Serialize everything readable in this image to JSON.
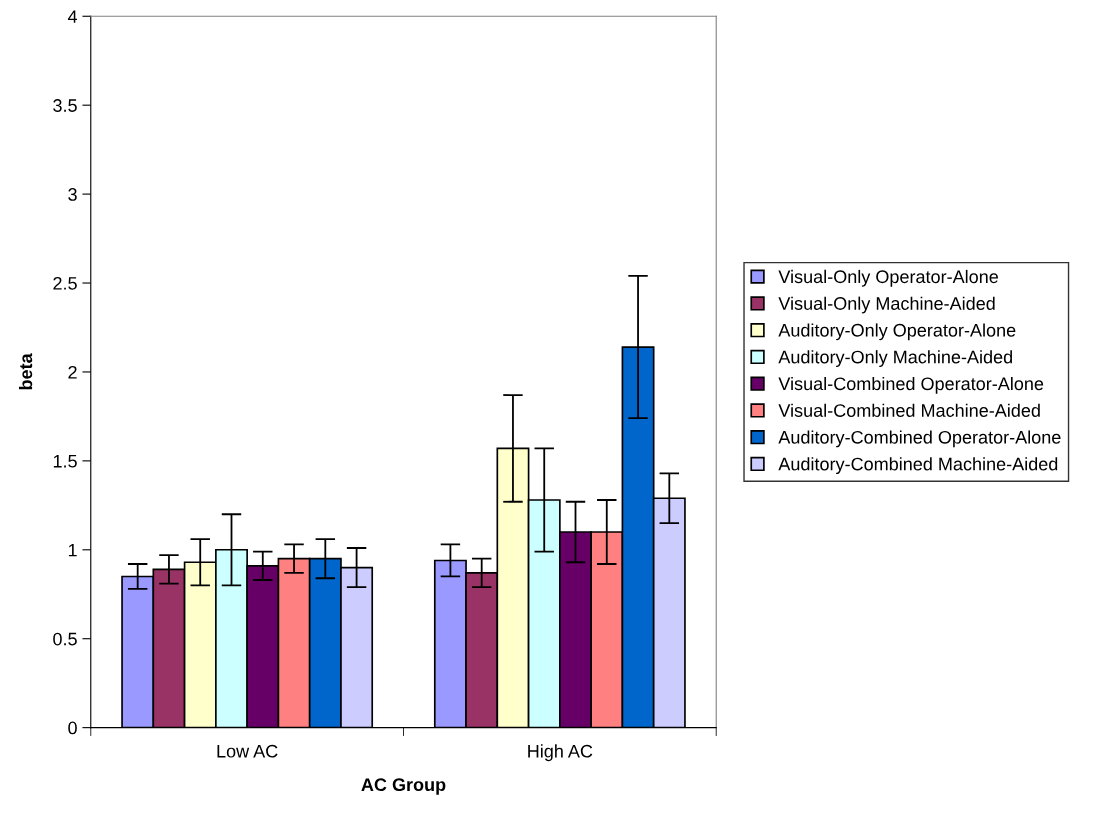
{
  "chart_data": {
    "type": "bar",
    "xlabel": "AC Group",
    "ylabel": "beta",
    "categories": [
      "Low AC",
      "High AC"
    ],
    "ylim": [
      0,
      4
    ],
    "yticks": [
      0,
      0.5,
      1,
      1.5,
      2,
      2.5,
      3,
      3.5,
      4
    ],
    "grid": false,
    "legend": "right",
    "series": [
      {
        "name": "Visual-Only Operator-Alone",
        "color": "#9999ff",
        "values": [
          0.85,
          0.94
        ],
        "errors": [
          0.07,
          0.09
        ]
      },
      {
        "name": "Visual-Only Machine-Aided",
        "color": "#993366",
        "values": [
          0.89,
          0.87
        ],
        "errors": [
          0.08,
          0.08
        ]
      },
      {
        "name": "Auditory-Only Operator-Alone",
        "color": "#ffffcc",
        "values": [
          0.93,
          1.57
        ],
        "errors": [
          0.13,
          0.3
        ]
      },
      {
        "name": "Auditory-Only Machine-Aided",
        "color": "#ccffff",
        "values": [
          1.0,
          1.28
        ],
        "errors": [
          0.2,
          0.29
        ]
      },
      {
        "name": "Visual-Combined Operator-Alone",
        "color": "#660066",
        "values": [
          0.91,
          1.1
        ],
        "errors": [
          0.08,
          0.17
        ]
      },
      {
        "name": "Visual-Combined Machine-Aided",
        "color": "#ff8080",
        "values": [
          0.95,
          1.1
        ],
        "errors": [
          0.08,
          0.18
        ]
      },
      {
        "name": "Auditory-Combined Operator-Alone",
        "color": "#0066cc",
        "values": [
          0.95,
          2.14
        ],
        "errors": [
          0.11,
          0.4
        ]
      },
      {
        "name": "Auditory-Combined Machine-Aided",
        "color": "#ccccff",
        "values": [
          0.9,
          1.29
        ],
        "errors": [
          0.11,
          0.14
        ]
      }
    ]
  }
}
